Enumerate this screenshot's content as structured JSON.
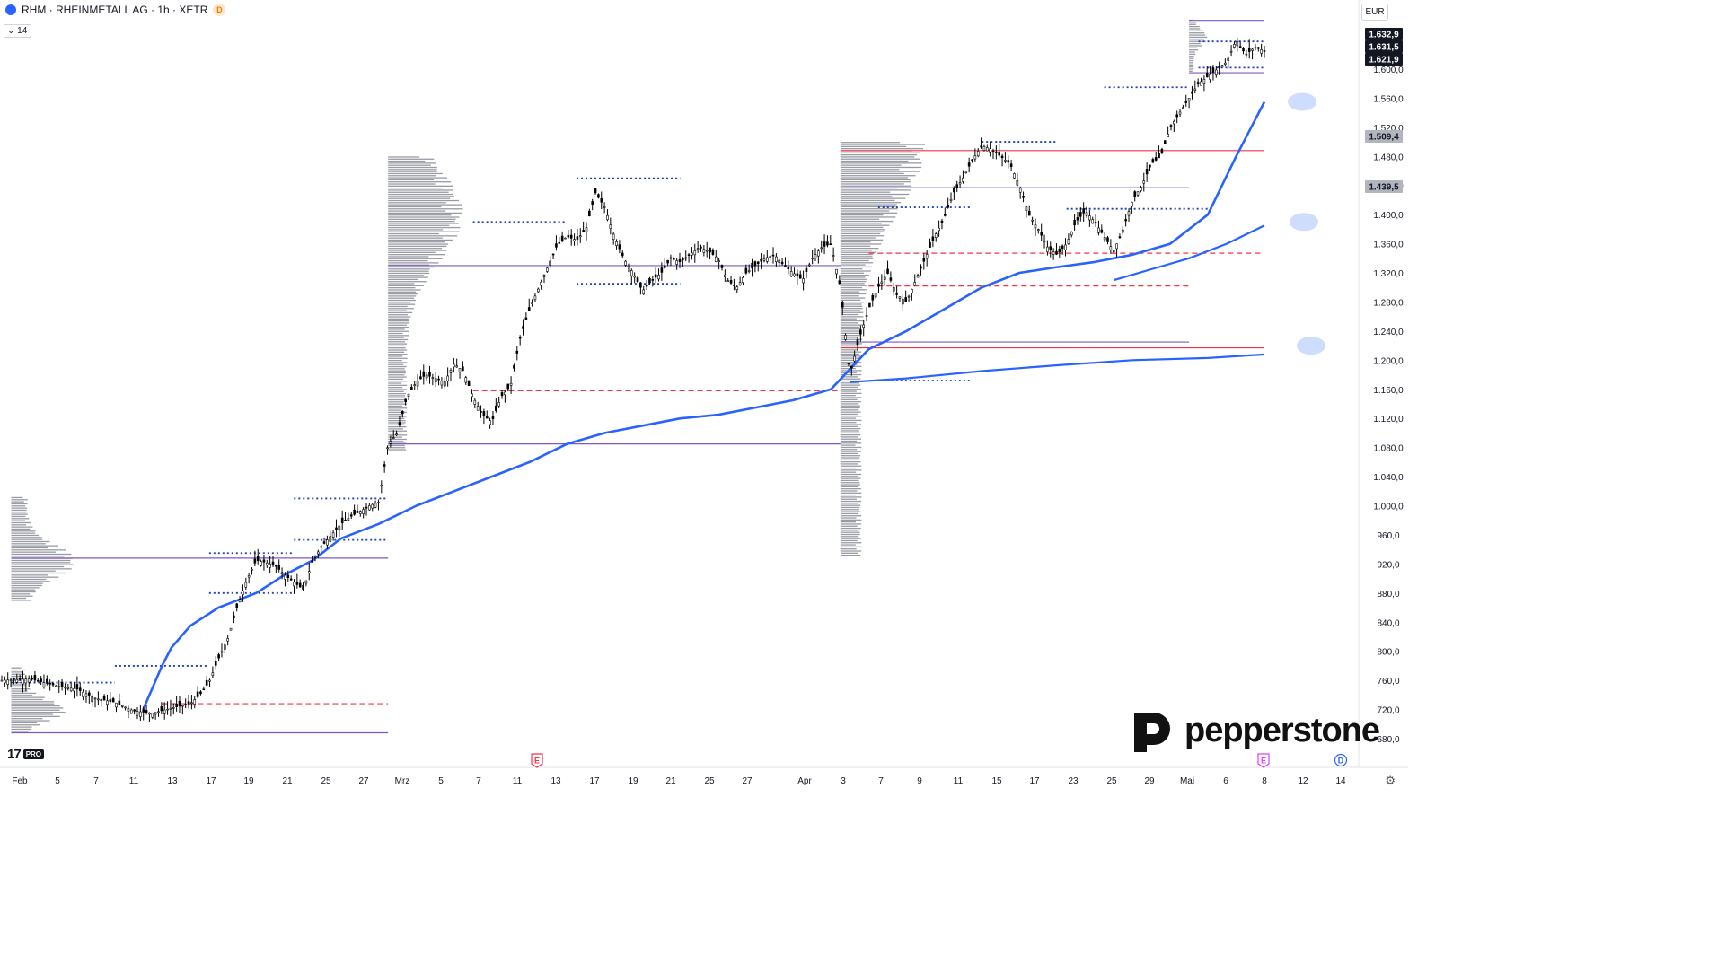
{
  "header": {
    "symbol": "RHM · RHEINMETALL AG · 1h · XETR",
    "badge": "D",
    "period": "14",
    "currency": "EUR"
  },
  "price_labels": [
    {
      "text": "1.632,9",
      "kind": "dark"
    },
    {
      "text": "1.631,5",
      "kind": "dark"
    },
    {
      "text": "1.621,9",
      "kind": "dark"
    },
    {
      "text": "1.509,4",
      "kind": "grey"
    },
    {
      "text": "1.439,5",
      "kind": "grey"
    }
  ],
  "brand": {
    "name": "pepperstone"
  },
  "tv_logo": {
    "mark": "17",
    "plan": "PRO"
  },
  "event_markers": [
    {
      "letter": "E",
      "color": "#f23645",
      "date": "11 Mrz"
    },
    {
      "letter": "E",
      "color": "#e040fb",
      "date": "Mai 7"
    },
    {
      "letter": "D",
      "color": "#2962ff",
      "date": "Mai 14"
    }
  ],
  "colors": {
    "candles": "#000000",
    "vwap_band": "#2962ff",
    "profile": "#868993",
    "poc": "#7e57c2",
    "level_red": "#f23645",
    "level_blue_dotted": "#1e3fbf",
    "level_red_dashed": "#f23645",
    "ellipse": "#c5d7fb"
  },
  "chart_data": {
    "type": "candlestick",
    "title": "RHM · RHEINMETALL AG · 1h · XETR",
    "currency": "EUR",
    "ylim": [
      670,
      1700
    ],
    "y_ticks": [
      680,
      720,
      760,
      800,
      840,
      880,
      920,
      960,
      1000,
      1040,
      1080,
      1120,
      1160,
      1200,
      1240,
      1280,
      1320,
      1360,
      1400,
      1440,
      1480,
      1520,
      1560,
      1600
    ],
    "y_tick_labels": [
      "680,0",
      "720,0",
      "760,0",
      "800,0",
      "840,0",
      "880,0",
      "920,0",
      "960,0",
      "1.000,0",
      "1.040,0",
      "1.080,0",
      "1.120,0",
      "1.160,0",
      "1.200,0",
      "1.240,0",
      "1.280,0",
      "1.320,0",
      "1.360,0",
      "1.400,0",
      "1.440,0",
      "1.480,0",
      "1.520,0",
      "1.560,0",
      "1.600,0"
    ],
    "x_tick_labels": [
      "Feb",
      "5",
      "7",
      "11",
      "13",
      "17",
      "19",
      "21",
      "25",
      "27",
      "Mrz",
      "5",
      "7",
      "11",
      "13",
      "17",
      "19",
      "21",
      "25",
      "27",
      "Apr",
      "3",
      "7",
      "9",
      "11",
      "15",
      "17",
      "23",
      "25",
      "29",
      "Mai",
      "6",
      "8",
      "12",
      "14"
    ],
    "price_path": [
      [
        0,
        760
      ],
      [
        3,
        762
      ],
      [
        6,
        752
      ],
      [
        8,
        748
      ],
      [
        10,
        735
      ],
      [
        12,
        730
      ],
      [
        14,
        718
      ],
      [
        16,
        715
      ],
      [
        18,
        722
      ],
      [
        20,
        728
      ],
      [
        21,
        740
      ],
      [
        22,
        758
      ],
      [
        23,
        790
      ],
      [
        24,
        818
      ],
      [
        25,
        862
      ],
      [
        26,
        898
      ],
      [
        27,
        925
      ],
      [
        28,
        922
      ],
      [
        29,
        918
      ],
      [
        30,
        905
      ],
      [
        31,
        895
      ],
      [
        32,
        885
      ],
      [
        33,
        925
      ],
      [
        34,
        945
      ],
      [
        35,
        960
      ],
      [
        36,
        975
      ],
      [
        37,
        985
      ],
      [
        38,
        992
      ],
      [
        39,
        1000
      ],
      [
        40,
        1005
      ],
      [
        41,
        1085
      ],
      [
        42,
        1100
      ],
      [
        43,
        1150
      ],
      [
        44,
        1170
      ],
      [
        45,
        1180
      ],
      [
        46,
        1175
      ],
      [
        47,
        1170
      ],
      [
        48,
        1195
      ],
      [
        49,
        1185
      ],
      [
        50,
        1150
      ],
      [
        51,
        1125
      ],
      [
        52,
        1115
      ],
      [
        53,
        1150
      ],
      [
        54,
        1165
      ],
      [
        55,
        1230
      ],
      [
        56,
        1270
      ],
      [
        57,
        1300
      ],
      [
        58,
        1330
      ],
      [
        59,
        1360
      ],
      [
        60,
        1370
      ],
      [
        61,
        1365
      ],
      [
        62,
        1380
      ],
      [
        63,
        1430
      ],
      [
        64,
        1410
      ],
      [
        65,
        1370
      ],
      [
        66,
        1340
      ],
      [
        67,
        1320
      ],
      [
        68,
        1295
      ],
      [
        69,
        1310
      ],
      [
        70,
        1320
      ],
      [
        71,
        1340
      ],
      [
        72,
        1335
      ],
      [
        73,
        1345
      ],
      [
        74,
        1355
      ],
      [
        75,
        1350
      ],
      [
        76,
        1340
      ],
      [
        77,
        1310
      ],
      [
        78,
        1300
      ],
      [
        79,
        1320
      ],
      [
        80,
        1330
      ],
      [
        81,
        1340
      ],
      [
        82,
        1345
      ],
      [
        83,
        1330
      ],
      [
        84,
        1320
      ],
      [
        85,
        1310
      ],
      [
        86,
        1340
      ],
      [
        87,
        1355
      ],
      [
        88,
        1360
      ],
      [
        89,
        1300
      ],
      [
        90,
        1180
      ],
      [
        91,
        1230
      ],
      [
        92,
        1270
      ],
      [
        93,
        1300
      ],
      [
        94,
        1320
      ],
      [
        95,
        1290
      ],
      [
        96,
        1280
      ],
      [
        97,
        1310
      ],
      [
        98,
        1340
      ],
      [
        99,
        1370
      ],
      [
        100,
        1395
      ],
      [
        101,
        1430
      ],
      [
        102,
        1450
      ],
      [
        103,
        1475
      ],
      [
        104,
        1495
      ],
      [
        105,
        1490
      ],
      [
        106,
        1480
      ],
      [
        107,
        1470
      ],
      [
        108,
        1440
      ],
      [
        109,
        1400
      ],
      [
        110,
        1380
      ],
      [
        111,
        1355
      ],
      [
        112,
        1345
      ],
      [
        113,
        1360
      ],
      [
        114,
        1390
      ],
      [
        115,
        1405
      ],
      [
        116,
        1390
      ],
      [
        117,
        1370
      ],
      [
        118,
        1350
      ],
      [
        119,
        1380
      ],
      [
        120,
        1420
      ],
      [
        121,
        1440
      ],
      [
        122,
        1470
      ],
      [
        123,
        1480
      ],
      [
        124,
        1520
      ],
      [
        125,
        1540
      ],
      [
        126,
        1560
      ],
      [
        127,
        1580
      ],
      [
        128,
        1590
      ],
      [
        129,
        1600
      ],
      [
        130,
        1610
      ],
      [
        131,
        1640
      ],
      [
        132,
        1620
      ],
      [
        133,
        1630
      ],
      [
        134,
        1625
      ]
    ],
    "vwap_path": [
      [
        15,
        720
      ],
      [
        17,
        780
      ],
      [
        18,
        805
      ],
      [
        20,
        835
      ],
      [
        23,
        860
      ],
      [
        27,
        880
      ],
      [
        30,
        905
      ],
      [
        33,
        925
      ],
      [
        36,
        955
      ],
      [
        40,
        975
      ],
      [
        44,
        1000
      ],
      [
        48,
        1020
      ],
      [
        52,
        1040
      ],
      [
        56,
        1060
      ],
      [
        60,
        1085
      ],
      [
        64,
        1100
      ],
      [
        68,
        1110
      ],
      [
        72,
        1120
      ],
      [
        76,
        1125
      ],
      [
        80,
        1135
      ],
      [
        84,
        1145
      ],
      [
        88,
        1160
      ],
      [
        92,
        1215
      ],
      [
        96,
        1240
      ],
      [
        100,
        1270
      ],
      [
        104,
        1300
      ],
      [
        108,
        1320
      ],
      [
        112,
        1328
      ],
      [
        116,
        1335
      ],
      [
        120,
        1345
      ],
      [
        124,
        1360
      ],
      [
        128,
        1400
      ],
      [
        131,
        1480
      ],
      [
        134,
        1555
      ]
    ],
    "vwap_lower_path": [
      [
        90,
        1170
      ],
      [
        96,
        1175
      ],
      [
        104,
        1185
      ],
      [
        112,
        1193
      ],
      [
        120,
        1200
      ],
      [
        128,
        1203
      ],
      [
        134,
        1208
      ]
    ],
    "vwap_upper_path": [
      [
        118,
        1310
      ],
      [
        122,
        1325
      ],
      [
        126,
        1340
      ],
      [
        130,
        1360
      ],
      [
        134,
        1385
      ]
    ],
    "horizontal_levels": [
      {
        "y": 1488,
        "x0": 89,
        "x1": 134,
        "style": "solid",
        "color": "#f23645"
      },
      {
        "y": 1437,
        "x0": 89,
        "x1": 126,
        "style": "solid",
        "color": "#7e57c2"
      },
      {
        "y": 1330,
        "x0": 41,
        "x1": 89,
        "style": "solid",
        "color": "#7e57c2"
      },
      {
        "y": 1085,
        "x0": 41,
        "x1": 89,
        "style": "solid",
        "color": "#7e57c2"
      },
      {
        "y": 1225,
        "x0": 89,
        "x1": 126,
        "style": "solid",
        "color": "#7e57c2"
      },
      {
        "y": 1217,
        "x0": 89,
        "x1": 134,
        "style": "solid",
        "color": "#f23645"
      },
      {
        "y": 928,
        "x0": 1,
        "x1": 41,
        "style": "solid",
        "color": "#7e57c2"
      },
      {
        "y": 688,
        "x0": 1,
        "x1": 41,
        "style": "solid",
        "color": "#7e57c2"
      },
      {
        "y": 1667,
        "x0": 126,
        "x1": 134,
        "style": "solid",
        "color": "#7e57c2"
      },
      {
        "y": 1595,
        "x0": 126,
        "x1": 134,
        "style": "solid",
        "color": "#7e57c2"
      },
      {
        "y": 1158,
        "x0": 50,
        "x1": 89,
        "style": "dashed",
        "color": "#f23645"
      },
      {
        "y": 1302,
        "x0": 92,
        "x1": 126,
        "style": "dashed",
        "color": "#f23645"
      },
      {
        "y": 1347,
        "x0": 92,
        "x1": 134,
        "style": "dashed",
        "color": "#f23645"
      },
      {
        "y": 728,
        "x0": 17,
        "x1": 41,
        "style": "dashed",
        "color": "#f23645"
      },
      {
        "y": 1450,
        "x0": 61,
        "x1": 72,
        "style": "dotted",
        "color": "#1e3fbf"
      },
      {
        "y": 1390,
        "x0": 50,
        "x1": 60,
        "style": "dotted",
        "color": "#1e3fbf"
      },
      {
        "y": 1410,
        "x0": 93,
        "x1": 103,
        "style": "dotted",
        "color": "#1e3fbf"
      },
      {
        "y": 1500,
        "x0": 104,
        "x1": 112,
        "style": "dotted",
        "color": "#1e3fbf"
      },
      {
        "y": 1408,
        "x0": 113,
        "x1": 128,
        "style": "dotted",
        "color": "#1e3fbf"
      },
      {
        "y": 1172,
        "x0": 93,
        "x1": 103,
        "style": "dotted",
        "color": "#1e3fbf"
      },
      {
        "y": 1010,
        "x0": 31,
        "x1": 41,
        "style": "dotted",
        "color": "#1e3fbf"
      },
      {
        "y": 953,
        "x0": 31,
        "x1": 41,
        "style": "dotted",
        "color": "#1e3fbf"
      },
      {
        "y": 935,
        "x0": 22,
        "x1": 31,
        "style": "dotted",
        "color": "#1e3fbf"
      },
      {
        "y": 880,
        "x0": 22,
        "x1": 31,
        "style": "dotted",
        "color": "#1e3fbf"
      },
      {
        "y": 780,
        "x0": 12,
        "x1": 22,
        "style": "dotted",
        "color": "#1e3fbf"
      },
      {
        "y": 757,
        "x0": 1,
        "x1": 12,
        "style": "dotted",
        "color": "#1e3fbf"
      },
      {
        "y": 1305,
        "x0": 61,
        "x1": 72,
        "style": "dotted",
        "color": "#1e3fbf"
      },
      {
        "y": 1575,
        "x0": 117,
        "x1": 126,
        "style": "dotted",
        "color": "#1e3fbf"
      },
      {
        "y": 1638,
        "x0": 127,
        "x1": 134,
        "style": "dotted",
        "color": "#1e3fbf"
      },
      {
        "y": 1602,
        "x0": 127,
        "x1": 134,
        "style": "dotted",
        "color": "#1e3fbf"
      }
    ],
    "volume_profiles": [
      {
        "x_start": 1,
        "y_low": 688,
        "y_high": 778,
        "max_width": 6
      },
      {
        "x_start": 1,
        "y_low": 868,
        "y_high": 1012,
        "max_width": 7
      },
      {
        "x_start": 41,
        "y_low": 1075,
        "y_high": 1480,
        "max_width": 8
      },
      {
        "x_start": 89,
        "y_low": 930,
        "y_high": 1500,
        "max_width": 9
      },
      {
        "x_start": 126,
        "y_low": 1595,
        "y_high": 1668,
        "max_width": 2
      }
    ],
    "ellipses": [
      {
        "x": 130,
        "y": 1555
      },
      {
        "x": 130,
        "y": 1390
      },
      {
        "x": 130,
        "y": 1220
      }
    ]
  }
}
